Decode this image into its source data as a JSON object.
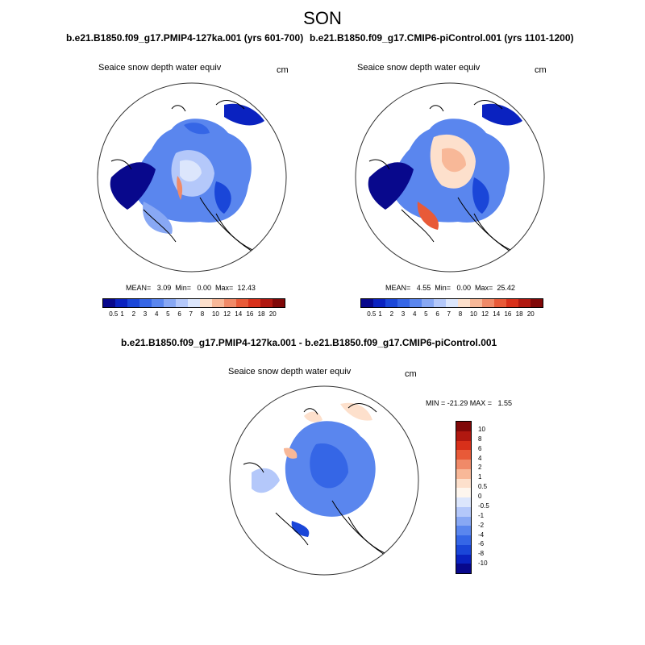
{
  "title": "SON",
  "panels": {
    "left": {
      "case": "b.e21.B1850.f09_g17.PMIP4-127ka.001 (yrs 601-700)",
      "variable": "Seaice snow depth water equiv",
      "units": "cm",
      "stats": "MEAN=   3.09  Min=   0.00  Max=  12.43"
    },
    "right": {
      "case": "b.e21.B1850.f09_g17.CMIP6-piControl.001 (yrs 1101-1200)",
      "variable": "Seaice snow depth water equiv",
      "units": "cm",
      "stats": "MEAN=   4.55  Min=   0.00  Max=  25.42"
    },
    "diff": {
      "case": "b.e21.B1850.f09_g17.PMIP4-127ka.001 - b.e21.B1850.f09_g17.CMIP6-piControl.001",
      "variable": "Seaice snow depth water equiv",
      "units": "cm",
      "stats": "MIN = -21.29 MAX =   1.55"
    }
  },
  "colorbar_abs": {
    "labels": [
      "0.5",
      "1",
      "2",
      "3",
      "4",
      "5",
      "6",
      "7",
      "8",
      "10",
      "12",
      "14",
      "16",
      "18",
      "20"
    ],
    "colors": [
      "#08088c",
      "#0a22c0",
      "#1a46d8",
      "#3566e6",
      "#5a86ee",
      "#88a8f4",
      "#b4c8fa",
      "#dce6fc",
      "#fde0cc",
      "#f8b898",
      "#f08a68",
      "#e85a38",
      "#d8301a",
      "#b01810",
      "#800808"
    ]
  },
  "colorbar_diff": {
    "labels": [
      "10",
      "8",
      "6",
      "4",
      "2",
      "1",
      "0.5",
      "0",
      "-0.5",
      "-1",
      "-2",
      "-4",
      "-6",
      "-8",
      "-10"
    ],
    "colors": [
      "#800808",
      "#b01810",
      "#d8301a",
      "#e85a38",
      "#f08a68",
      "#f8b898",
      "#fde0cc",
      "#fef6ee",
      "#dce6fc",
      "#b4c8fa",
      "#88a8f4",
      "#5a86ee",
      "#3566e6",
      "#1a46d8",
      "#0a22c0",
      "#08088c"
    ]
  }
}
